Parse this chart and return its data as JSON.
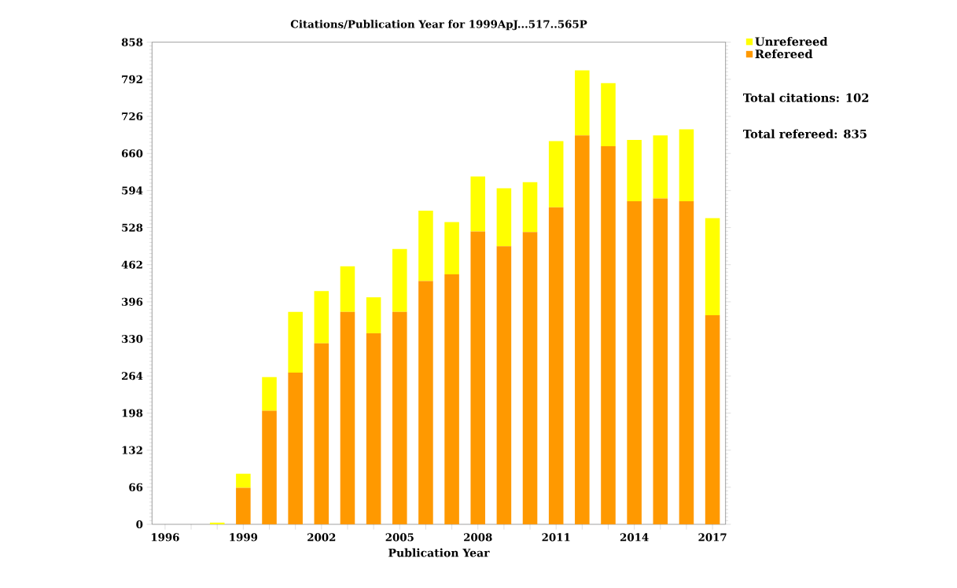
{
  "chart_data": {
    "type": "bar",
    "stacked": true,
    "title": "Citations/Publication Year for 1999ApJ...517..565P",
    "xlabel": "Publication Year",
    "x": [
      1996,
      1997,
      1998,
      1999,
      2000,
      2001,
      2002,
      2003,
      2004,
      2005,
      2006,
      2007,
      2008,
      2009,
      2010,
      2011,
      2012,
      2013,
      2014,
      2015,
      2016,
      2017
    ],
    "series": [
      {
        "name": "Refereed",
        "color": "#ff9900",
        "values": [
          0,
          0,
          0,
          65,
          202,
          270,
          322,
          378,
          340,
          378,
          433,
          445,
          521,
          495,
          520,
          564,
          692,
          673,
          575,
          580,
          575,
          372
        ]
      },
      {
        "name": "Unrefereed",
        "color": "#ffff00",
        "values": [
          0,
          0,
          3,
          25,
          60,
          108,
          93,
          81,
          64,
          112,
          125,
          93,
          98,
          103,
          89,
          118,
          116,
          112,
          109,
          112,
          128,
          173
        ]
      }
    ],
    "xlim": [
      1995.5,
      2017.5
    ],
    "xticks": [
      1996,
      {
        "value": 1997,
        "label": null
      },
      {
        "value": 1998,
        "label": null
      },
      1999,
      {
        "value": 2000,
        "label": null
      },
      {
        "value": 2001,
        "label": null
      },
      2002,
      {
        "value": 2003,
        "label": null
      },
      {
        "value": 2004,
        "label": null
      },
      2005,
      {
        "value": 2006,
        "label": null
      },
      {
        "value": 2007,
        "label": null
      },
      2008,
      {
        "value": 2009,
        "label": null
      },
      {
        "value": 2010,
        "label": null
      },
      2011,
      {
        "value": 2012,
        "label": null
      },
      {
        "value": 2013,
        "label": null
      },
      2014,
      {
        "value": 2015,
        "label": null
      },
      {
        "value": 2016,
        "label": null
      },
      2017
    ],
    "ylim": [
      0,
      858
    ],
    "yticks": [
      0,
      66,
      132,
      198,
      264,
      330,
      396,
      462,
      528,
      594,
      660,
      726,
      792,
      858
    ],
    "legend": "top right",
    "annotations": [
      "Total citations: 102",
      "Total refereed: 835"
    ]
  }
}
